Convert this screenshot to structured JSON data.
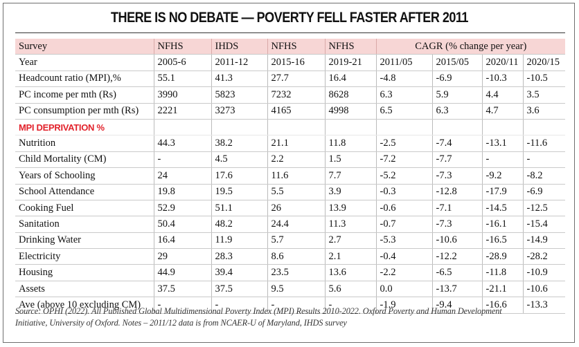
{
  "title": "THERE IS NO DEBATE — POVERTY FELL FASTER AFTER 2011",
  "header_row1": {
    "label": "Survey",
    "surveys": [
      "NFHS",
      "IHDS",
      "NFHS",
      "NFHS"
    ],
    "cagr": "CAGR (% change per year)"
  },
  "header_row2": {
    "label": "Year",
    "cells": [
      "2005-6",
      "2011-12",
      "2015-16",
      "2019-21",
      "2011/05",
      "2015/05",
      "2020/11",
      "2020/15"
    ]
  },
  "rows_top": [
    {
      "label": "Headcount ratio (MPI),%",
      "cells": [
        "55.1",
        "41.3",
        "27.7",
        "16.4",
        "-4.8",
        "-6.9",
        "-10.3",
        "-10.5"
      ]
    },
    {
      "label": "PC income per mth (Rs)",
      "cells": [
        "3990",
        "5823",
        "7232",
        "8628",
        "6.3",
        "5.9",
        "4.4",
        "3.5"
      ]
    },
    {
      "label": "PC consumption per mth (Rs)",
      "cells": [
        "2221",
        "3273",
        "4165",
        "4998",
        "6.5",
        "6.3",
        "4.7",
        "3.6"
      ]
    }
  ],
  "section_label": "MPI DEPRIVATION %",
  "rows_mpi": [
    {
      "label": "Nutrition",
      "cells": [
        "44.3",
        "38.2",
        "21.1",
        "11.8",
        "-2.5",
        "-7.4",
        "-13.1",
        "-11.6"
      ]
    },
    {
      "label": "Child Mortality (CM)",
      "cells": [
        "-",
        "4.5",
        "2.2",
        "1.5",
        "-7.2",
        "-7.7",
        "-",
        "-"
      ]
    },
    {
      "label": "Years of Schooling",
      "cells": [
        "24",
        "17.6",
        "11.6",
        "7.7",
        "-5.2",
        "-7.3",
        "-9.2",
        "-8.2"
      ]
    },
    {
      "label": "School Attendance",
      "cells": [
        "19.8",
        "19.5",
        "5.5",
        "3.9",
        "-0.3",
        "-12.8",
        "-17.9",
        "-6.9"
      ]
    },
    {
      "label": "Cooking Fuel",
      "cells": [
        "52.9",
        "51.1",
        "26",
        "13.9",
        "-0.6",
        "-7.1",
        "-14.5",
        "-12.5"
      ]
    },
    {
      "label": "Sanitation",
      "cells": [
        "50.4",
        "48.2",
        "24.4",
        "11.3",
        "-0.7",
        "-7.3",
        "-16.1",
        "-15.4"
      ]
    },
    {
      "label": "Drinking Water",
      "cells": [
        "16.4",
        "11.9",
        "5.7",
        "2.7",
        "-5.3",
        "-10.6",
        "-16.5",
        "-14.9"
      ]
    },
    {
      "label": "Electricity",
      "cells": [
        "29",
        "28.3",
        "8.6",
        "2.1",
        "-0.4",
        "-12.2",
        "-28.9",
        "-28.2"
      ]
    },
    {
      "label": "Housing",
      "cells": [
        "44.9",
        "39.4",
        "23.5",
        "13.6",
        "-2.2",
        "-6.5",
        "-11.8",
        "-10.9"
      ]
    },
    {
      "label": "Assets",
      "cells": [
        "37.5",
        "37.5",
        "9.5",
        "5.6",
        "0.0",
        "-13.7",
        "-21.1",
        "-10.6"
      ]
    },
    {
      "label": "Ave (above 10 excluding CM)",
      "cells": [
        "-",
        "-",
        "-",
        "-",
        "-1.9",
        "-9.4",
        "-16.6",
        "-13.3"
      ]
    }
  ],
  "source_line1": "Source: OPHI (2022). All Published Global Multidimensional Poverty Index (MPI) Results 2010-2022. Oxford Poverty and Human Development",
  "source_line2": "Initiative, University of Oxford. Notes – 2011/12 data is from NCAER-U of Maryland, IHDS survey",
  "colors": {
    "header_fill": "#f7d6d5",
    "section_label": "#e2222b"
  }
}
